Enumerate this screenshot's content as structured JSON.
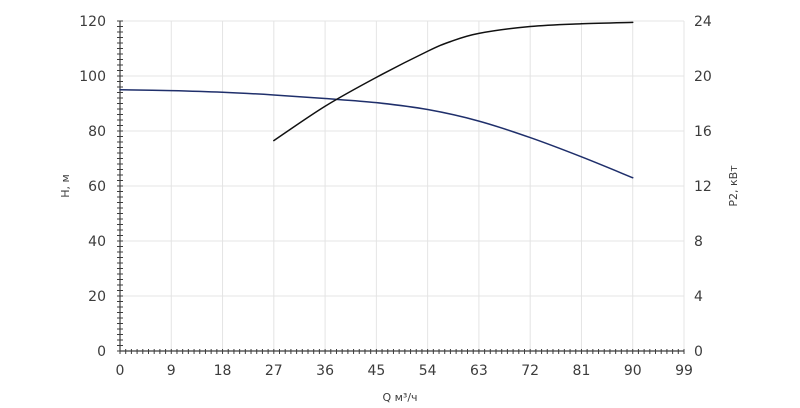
{
  "chart_data": {
    "type": "line",
    "xlabel": "Q м³/ч",
    "ylabel_left": "H, м",
    "ylabel_right": "P2, кВт",
    "x_ticks": [
      "0",
      "9",
      "18",
      "27",
      "36",
      "45",
      "54",
      "63",
      "72",
      "81",
      "90",
      "99"
    ],
    "y_left_ticks": [
      "0",
      "20",
      "40",
      "60",
      "80",
      "100",
      "120"
    ],
    "y_right_ticks": [
      "0",
      "4",
      "8",
      "12",
      "16",
      "20",
      "24"
    ],
    "xlim": [
      0,
      99
    ],
    "ylim_left": [
      0,
      120
    ],
    "ylim_right": [
      0,
      24
    ],
    "grid": true,
    "series": [
      {
        "axis": "left",
        "color": "#1f2f6b",
        "x": [
          0,
          9,
          18,
          27,
          36,
          45,
          54,
          63,
          72,
          81,
          90
        ],
        "y": [
          95,
          94.7,
          94.1,
          93.1,
          91.8,
          90.3,
          87.8,
          83.6,
          77.6,
          70.6,
          63
        ]
      },
      {
        "axis": "right",
        "color": "#111111",
        "x": [
          27,
          36,
          45,
          54,
          58,
          63,
          72,
          81,
          90
        ],
        "y": [
          15.3,
          17.8,
          19.9,
          21.8,
          22.5,
          23.1,
          23.6,
          23.8,
          23.9
        ]
      }
    ]
  }
}
